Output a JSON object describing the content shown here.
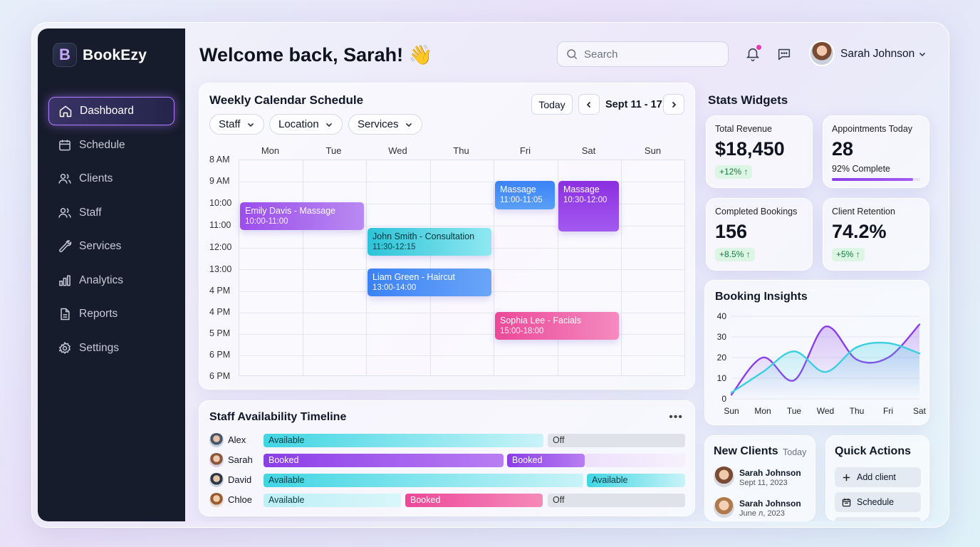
{
  "app": {
    "name": "BookEzy",
    "logo_letter": "B"
  },
  "sidebar": {
    "items": [
      {
        "label": "Dashboard",
        "icon": "home-icon",
        "active": true
      },
      {
        "label": "Schedule",
        "icon": "calendar-icon"
      },
      {
        "label": "Clients",
        "icon": "users-icon"
      },
      {
        "label": "Staff",
        "icon": "staff-icon"
      },
      {
        "label": "Services",
        "icon": "wrench-icon"
      },
      {
        "label": "Analytics",
        "icon": "bar-chart-icon"
      },
      {
        "label": "Reports",
        "icon": "document-icon"
      },
      {
        "label": "Settings",
        "icon": "gear-icon"
      }
    ]
  },
  "header": {
    "welcome": "Welcome back, Sarah! 👋",
    "search_placeholder": "Search",
    "user_name": "Sarah Johnson"
  },
  "calendar": {
    "title": "Weekly Calendar Schedule",
    "filters": [
      "Staff",
      "Location",
      "Services"
    ],
    "today_label": "Today",
    "range_label": "Sept 11 - 17",
    "days": [
      "Mon",
      "Tue",
      "Wed",
      "Thu",
      "Fri",
      "Sat",
      "Sun"
    ],
    "hours": [
      "8 AM",
      "9 AM",
      "10:00",
      "11:00",
      "12:00",
      "13:00",
      "4 PM",
      "4 PM",
      "5 PM",
      "6 PM",
      "6 PM"
    ],
    "events": [
      {
        "title": "Emily Davis - Massage",
        "time": "10:00-11:00",
        "color": "#9b4dea"
      },
      {
        "title": "John Smith - Consultation",
        "time": "11:30-12:15",
        "color": "#3ccfe0"
      },
      {
        "title": "Liam Green - Haircut",
        "time": "13:00-14:00",
        "color": "#3b82f6"
      },
      {
        "title": "Massage",
        "time": "11:00-11:05",
        "color": "#3b82f6"
      },
      {
        "title": "Massage",
        "time": "10:30-12:00",
        "color": "#8b2fe0"
      },
      {
        "title": "Sophia Lee - Facials",
        "time": "15:00-18:00",
        "color": "#ec4899"
      }
    ]
  },
  "availability": {
    "title": "Staff Availability Timeline",
    "menu_icon": "more-dots-icon",
    "rows": [
      {
        "name": "Alex",
        "segments": [
          "Available",
          "Off"
        ]
      },
      {
        "name": "Sarah",
        "segments": [
          "Booked",
          "Booked"
        ]
      },
      {
        "name": "David",
        "segments": [
          "Available",
          "Available"
        ]
      },
      {
        "name": "Chloe",
        "segments": [
          "Available",
          "Booked",
          "Off"
        ]
      }
    ]
  },
  "stats": {
    "title": "Stats Widgets",
    "widgets": [
      {
        "label": "Total Revenue",
        "value": "$18,450",
        "change": "+12% ↑"
      },
      {
        "label": "Appointments Today",
        "value": "28",
        "sub": "92% Complete",
        "progress": 0.92
      },
      {
        "label": "Completed Bookings",
        "value": "156",
        "change": "+8.5% ↑"
      },
      {
        "label": "Client Retention",
        "value": "74.2%",
        "change": "+5% ↑"
      }
    ]
  },
  "chart_data": {
    "type": "line",
    "title": "Booking Insights",
    "categories": [
      "Sun",
      "Mon",
      "Tue",
      "Wed",
      "Thu",
      "Fri",
      "Sat"
    ],
    "ylim": [
      0,
      40
    ],
    "yticks": [
      "40",
      "30",
      "20",
      "10",
      "0"
    ],
    "grid": true,
    "series": [
      {
        "values": [
          2,
          20,
          9,
          35,
          19,
          20,
          36
        ],
        "color": "#8b3ee8"
      },
      {
        "values": [
          3,
          13,
          23,
          13,
          25,
          27,
          22
        ],
        "color": "#3ccfe0"
      }
    ]
  },
  "new_clients": {
    "title": "New Clients",
    "today": "Today",
    "items": [
      {
        "name": "Sarah Johnson",
        "date": "Sept 11, 2023"
      },
      {
        "name": "Sarah Johnson",
        "date": "June л, 2023"
      }
    ]
  },
  "quick_actions": {
    "title": "Quick Actions",
    "items": [
      {
        "label": "Add client",
        "icon": "plus-icon"
      },
      {
        "label": "Schedule",
        "icon": "calendar-icon"
      }
    ]
  }
}
